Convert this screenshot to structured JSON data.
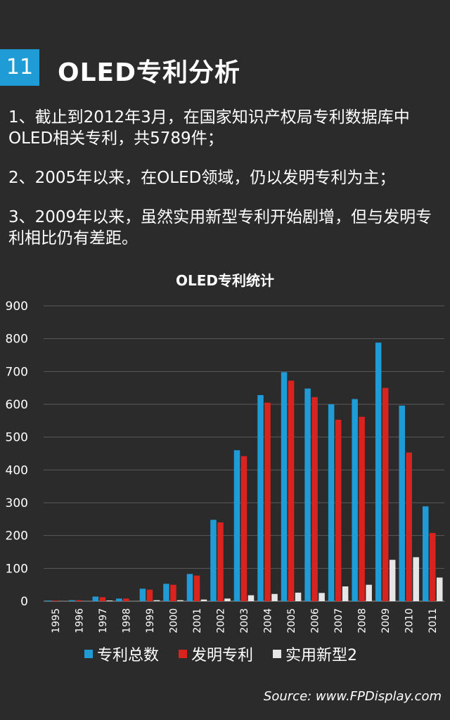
{
  "header": {
    "number": "11",
    "title": "OLED专利分析"
  },
  "points": [
    "1、截止到2012年3月，在国家知识产权局专利数据库中OLED相关专利，共5789件；",
    "2、2005年以来，在OLED领域，仍以发明专利为主；",
    "3、2009年以来，虽然实用新型专利开始剧增，但与发明专利相比仍有差距。"
  ],
  "source": "Source: www.FPDisplay.com",
  "colors": {
    "total": "#1f9bd6",
    "invention": "#d9231f",
    "utility": "#e6e6e6",
    "badge": "#1f9bd6",
    "background": "#2b2b2b"
  },
  "chart_data": {
    "type": "bar",
    "title": "OLED专利统计",
    "categories": [
      "1995",
      "1996",
      "1997",
      "1998",
      "1999",
      "2000",
      "2001",
      "2002",
      "2003",
      "2004",
      "2005",
      "2006",
      "2007",
      "2008",
      "2009",
      "2010",
      "2011"
    ],
    "series": [
      {
        "name": "专利总数",
        "values": [
          2,
          3,
          14,
          8,
          38,
          53,
          83,
          248,
          460,
          628,
          698,
          648,
          600,
          616,
          788,
          596,
          289
        ]
      },
      {
        "name": "发明专利",
        "values": [
          2,
          3,
          12,
          8,
          35,
          50,
          78,
          240,
          442,
          605,
          672,
          622,
          553,
          562,
          650,
          453,
          208
        ]
      },
      {
        "name": "实用新型2",
        "values": [
          0,
          0,
          2,
          0,
          3,
          3,
          5,
          8,
          18,
          22,
          26,
          25,
          45,
          50,
          126,
          134,
          72
        ]
      }
    ],
    "yticks": [
      "900",
      "800",
      "700",
      "600",
      "500",
      "400",
      "300",
      "200",
      "100",
      "0"
    ],
    "ylim": [
      0,
      900
    ],
    "grid": true,
    "legend_position": "bottom"
  }
}
